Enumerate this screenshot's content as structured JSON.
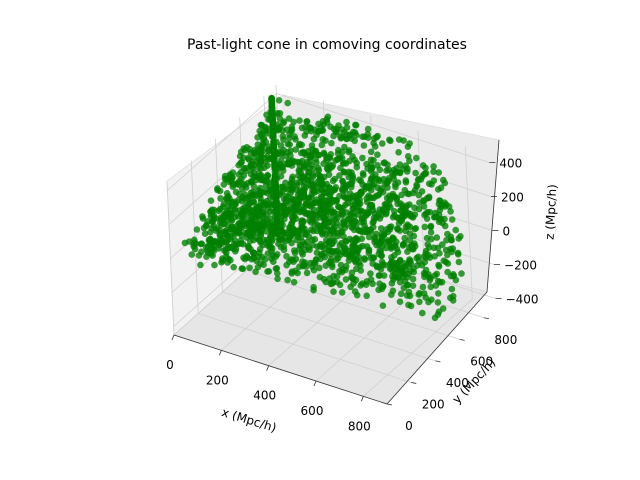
{
  "chart_data": {
    "type": "scatter",
    "projection": "3d",
    "title": "Past-light cone in comoving coordinates",
    "xlabel": "x (Mpc/h)",
    "ylabel": "y (Mpc/h)",
    "zlabel": "z (Mpc/h)",
    "xlim": [
      0,
      900
    ],
    "ylim": [
      0,
      900
    ],
    "zlim": [
      -450,
      450
    ],
    "xticks": [
      "0",
      "200",
      "400",
      "600",
      "800"
    ],
    "yticks": [
      "0",
      "200",
      "400",
      "600",
      "800"
    ],
    "zticks": [
      "400",
      "200",
      "0",
      "−200",
      "−400"
    ],
    "grid": true,
    "marker_color": "#008000",
    "point_count_approx": 2000,
    "x_range_of_points": [
      0,
      860
    ],
    "y_range_of_points": [
      0,
      860
    ],
    "z_range_of_points": [
      -400,
      400
    ]
  }
}
